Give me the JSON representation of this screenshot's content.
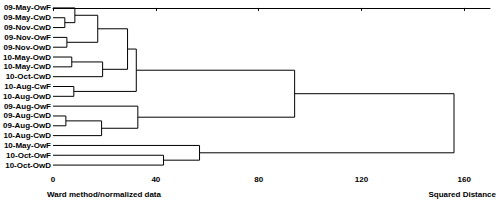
{
  "chart_data": {
    "type": "dendrogram",
    "xlabel": "Squared Distance",
    "method_label": "Ward method/normalized data",
    "xlim": [
      0,
      170
    ],
    "xticks": [
      0,
      40,
      80,
      120,
      160
    ],
    "grid": false,
    "color": "#000000",
    "tree": {
      "height": 156,
      "children": [
        {
          "height": 94,
          "children": [
            {
              "height": 32.4,
              "children": [
                {
                  "height": 29,
                  "children": [
                    {
                      "height": 17.4,
                      "children": [
                        {
                          "height": 8.5,
                          "children": [
                            {
                              "label": "09-May-OwF"
                            },
                            {
                              "height": 4.6,
                              "children": [
                                {
                                  "label": "09-May-CwD"
                                },
                                {
                                  "label": "09-Nov-CwD"
                                }
                              ]
                            }
                          ]
                        },
                        {
                          "height": 5.4,
                          "children": [
                            {
                              "label": "09-Nov-OwF"
                            },
                            {
                              "label": "09-Nov-OwD"
                            }
                          ]
                        }
                      ]
                    },
                    {
                      "height": 19.3,
                      "children": [
                        {
                          "height": 7.3,
                          "children": [
                            {
                              "label": "10-May-OwD"
                            },
                            {
                              "label": "10-May-CwD"
                            }
                          ]
                        },
                        {
                          "label": "10-Oct-CwD"
                        }
                      ]
                    }
                  ]
                },
                {
                  "height": 8.1,
                  "children": [
                    {
                      "label": "10-Aug-CwF"
                    },
                    {
                      "label": "10-Aug-OwD"
                    }
                  ]
                }
              ]
            },
            {
              "height": 33,
              "children": [
                {
                  "label": "09-Aug-OwF"
                },
                {
                  "height": 18.9,
                  "children": [
                    {
                      "height": 5,
                      "children": [
                        {
                          "label": "09-Aug-CwD"
                        },
                        {
                          "label": "09-Aug-OwD"
                        }
                      ]
                    },
                    {
                      "label": "10-Aug-CwD"
                    }
                  ]
                }
              ]
            }
          ]
        },
        {
          "height": 57,
          "children": [
            {
              "label": "10-May-OwF"
            },
            {
              "height": 43,
              "children": [
                {
                  "label": "10-Oct-OwF"
                },
                {
                  "label": "10-Oct-OwD"
                }
              ]
            }
          ]
        }
      ]
    }
  }
}
